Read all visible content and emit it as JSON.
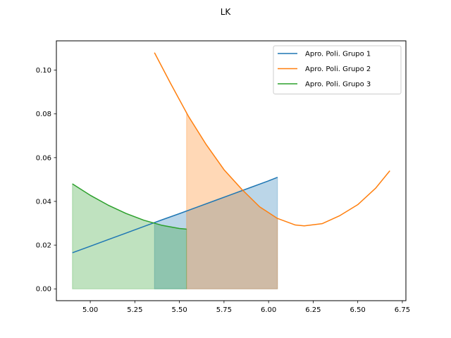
{
  "chart_data": {
    "type": "line",
    "title": "LK",
    "xlabel": "",
    "ylabel": "",
    "xlim": [
      4.81,
      6.77
    ],
    "ylim": [
      -0.0054,
      0.1134
    ],
    "xticks": [
      5.0,
      5.25,
      5.5,
      5.75,
      6.0,
      6.25,
      6.5,
      6.75
    ],
    "xtick_labels": [
      "5.00",
      "5.25",
      "5.50",
      "5.75",
      "6.00",
      "6.25",
      "6.50",
      "6.75"
    ],
    "yticks": [
      0.0,
      0.02,
      0.04,
      0.06,
      0.08,
      0.1
    ],
    "ytick_labels": [
      "0.00",
      "0.02",
      "0.04",
      "0.06",
      "0.08",
      "0.10"
    ],
    "grid": false,
    "legend_position": "top-right",
    "series": [
      {
        "name": "Apro. Poli. Grupo 1",
        "color": "#1f77b4",
        "x": [
          4.9,
          5.0,
          5.1,
          5.2,
          5.3,
          5.4,
          5.5,
          5.6,
          5.7,
          5.8,
          5.9,
          6.0,
          6.05
        ],
        "y": [
          0.0165,
          0.0195,
          0.0225,
          0.0255,
          0.0285,
          0.0315,
          0.0344,
          0.0374,
          0.0404,
          0.0434,
          0.0464,
          0.0494,
          0.051
        ],
        "fill_x": [
          5.36,
          6.05
        ]
      },
      {
        "name": "Apro. Poli. Grupo 2",
        "color": "#ff7f0e",
        "x": [
          5.36,
          5.45,
          5.55,
          5.65,
          5.75,
          5.85,
          5.95,
          6.05,
          6.15,
          6.2,
          6.3,
          6.4,
          6.5,
          6.6,
          6.68
        ],
        "y": [
          0.108,
          0.094,
          0.079,
          0.066,
          0.0545,
          0.0455,
          0.0375,
          0.0322,
          0.0292,
          0.0288,
          0.0298,
          0.0335,
          0.0385,
          0.046,
          0.054
        ],
        "fill_x": [
          5.54,
          6.05
        ]
      },
      {
        "name": "Apro. Poli. Grupo 3",
        "color": "#2ca02c",
        "x": [
          4.9,
          5.0,
          5.1,
          5.2,
          5.3,
          5.4,
          5.5,
          5.54
        ],
        "y": [
          0.048,
          0.0428,
          0.0383,
          0.0345,
          0.0314,
          0.0291,
          0.0276,
          0.0273
        ],
        "fill_x": [
          4.9,
          5.54
        ]
      }
    ]
  }
}
